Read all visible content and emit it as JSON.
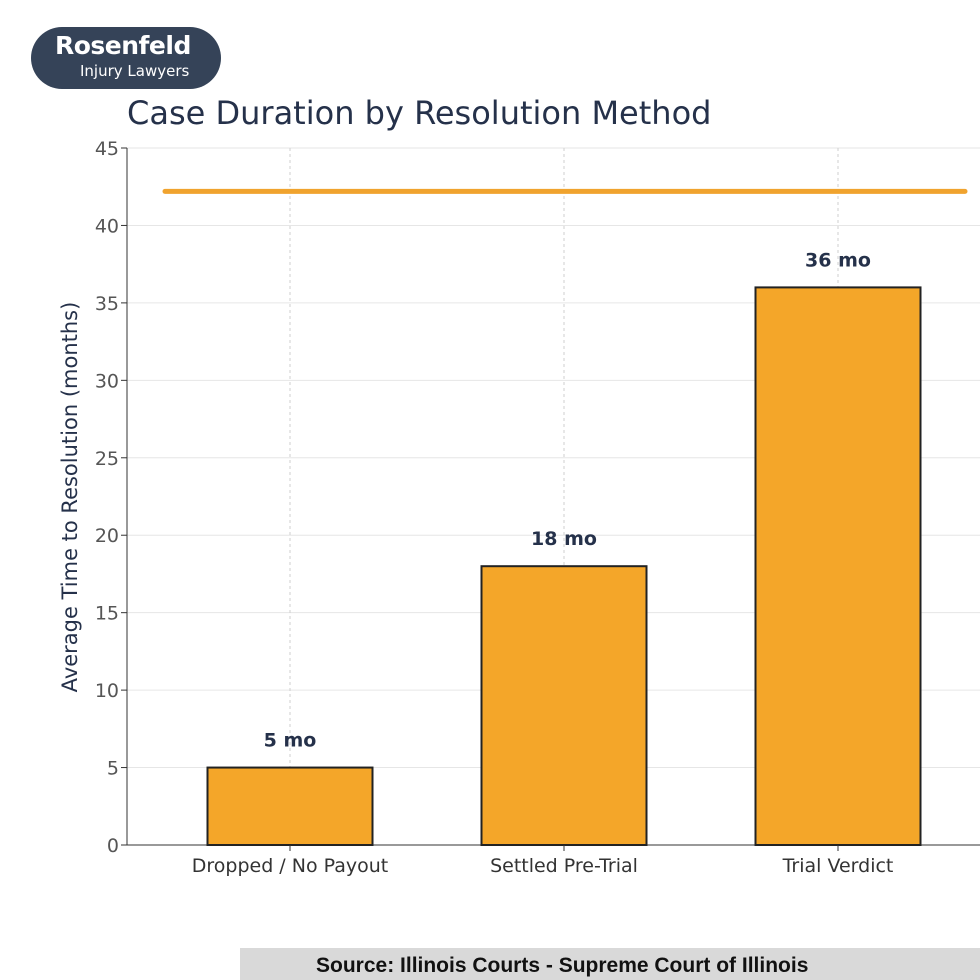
{
  "logo": {
    "name": "Rosenfeld",
    "tagline": "Injury Lawyers"
  },
  "source": "Source: Illinois Courts - Supreme Court of Illinois",
  "colors": {
    "bar": "#f4a629",
    "bar_edge": "#222222",
    "reference_line": "#f0a32e",
    "text_dark": "#25314a"
  },
  "chart_data": {
    "type": "bar",
    "title": "Case Duration by Resolution Method",
    "xlabel": "",
    "ylabel": "Average Time to Resolution (months)",
    "categories": [
      "Dropped / No Payout",
      "Settled Pre-Trial",
      "Trial Verdict"
    ],
    "values": [
      5,
      18,
      36
    ],
    "data_labels": [
      "5 mo",
      "18 mo",
      "36 mo"
    ],
    "reference_line": 42.2,
    "ylim": [
      0,
      45
    ],
    "yticks": [
      0,
      5,
      10,
      15,
      20,
      25,
      30,
      35,
      40,
      45
    ],
    "grid": true,
    "legend": "none"
  }
}
